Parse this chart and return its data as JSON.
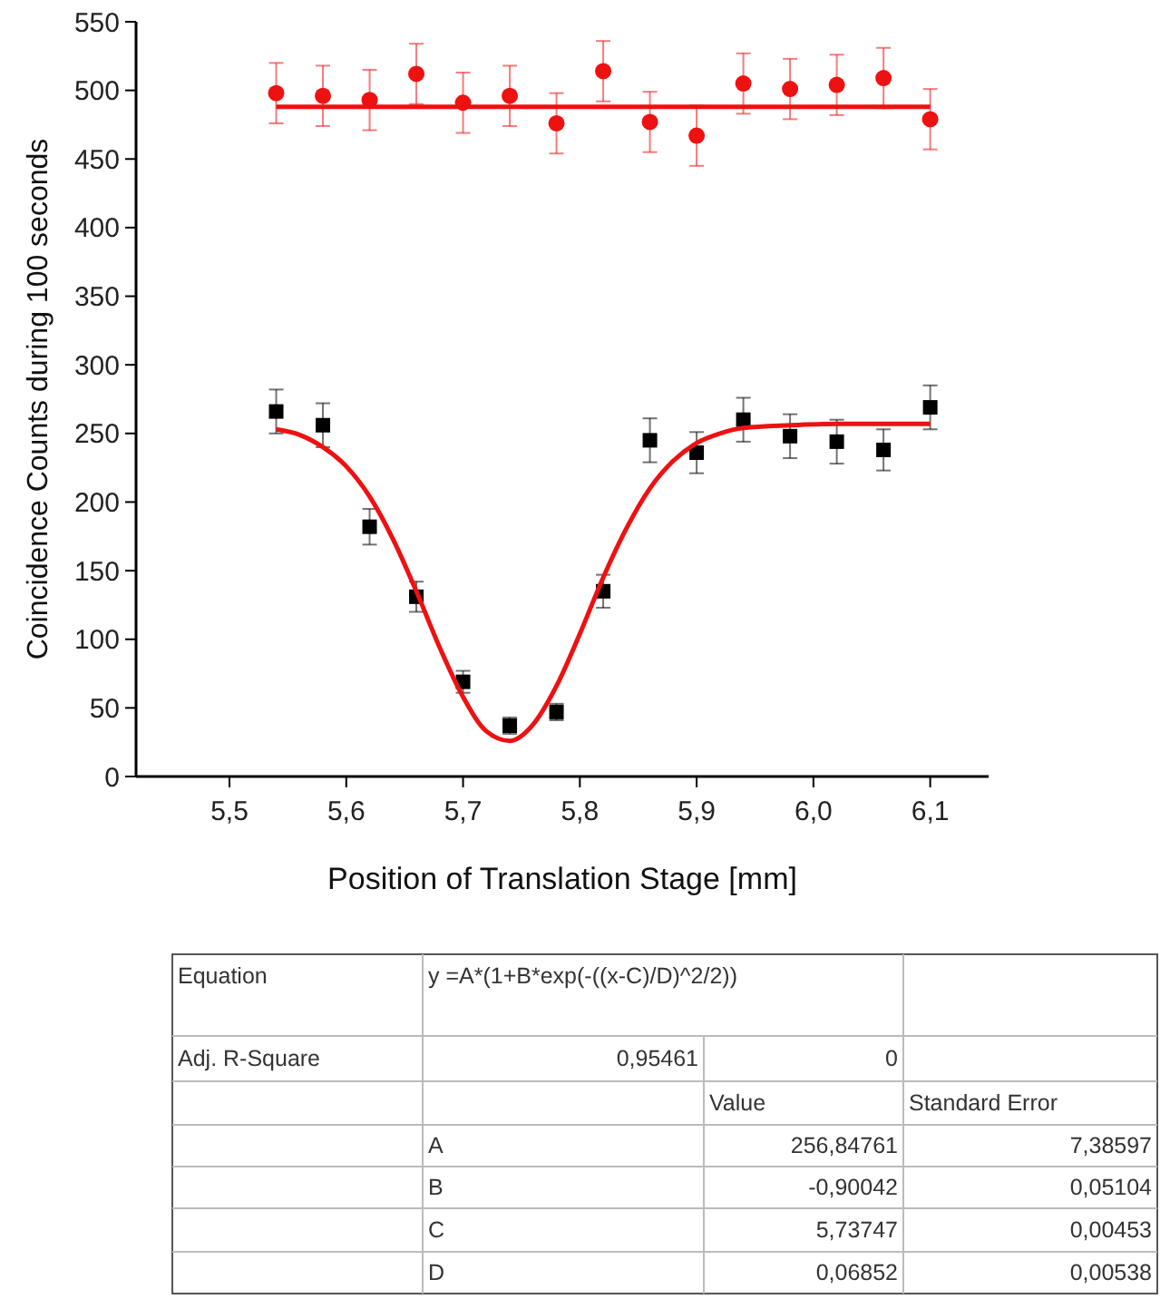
{
  "chart_data": [
    {
      "type": "scatter",
      "xlabel": "Position of Translation Stage [mm]",
      "ylabel": "Coincidence Counts during 100 seconds",
      "xlim": [
        5.42,
        6.15
      ],
      "ylim": [
        0,
        550
      ],
      "xticks": [
        {
          "value": 5.5,
          "label": "5,5"
        },
        {
          "value": 5.6,
          "label": "5,6"
        },
        {
          "value": 5.7,
          "label": "5,7"
        },
        {
          "value": 5.8,
          "label": "5,8"
        },
        {
          "value": 5.9,
          "label": "5,9"
        },
        {
          "value": 6.0,
          "label": "6,0"
        },
        {
          "value": 6.1,
          "label": "6,1"
        }
      ],
      "yticks": [
        0,
        50,
        100,
        150,
        200,
        250,
        300,
        350,
        400,
        450,
        500,
        550
      ],
      "grid": false,
      "series": [
        {
          "type": "scatter",
          "marker": "circle",
          "color": "#ee1111",
          "x": [
            5.54,
            5.58,
            5.62,
            5.66,
            5.7,
            5.74,
            5.78,
            5.82,
            5.86,
            5.9,
            5.94,
            5.98,
            6.02,
            6.06,
            6.1
          ],
          "values": [
            498,
            496,
            493,
            512,
            491,
            496,
            476,
            514,
            477,
            467,
            505,
            501,
            504,
            509,
            479
          ],
          "errors": [
            22,
            22,
            22,
            22,
            22,
            22,
            22,
            22,
            22,
            22,
            22,
            22,
            22,
            22,
            22
          ]
        },
        {
          "type": "line",
          "color": "#ee1111",
          "x": [
            5.54,
            6.1
          ],
          "values": [
            488,
            488
          ]
        },
        {
          "type": "scatter",
          "marker": "square",
          "color": "#000000",
          "x": [
            5.54,
            5.58,
            5.62,
            5.66,
            5.7,
            5.74,
            5.78,
            5.82,
            5.86,
            5.9,
            5.94,
            5.98,
            6.02,
            6.06,
            6.1
          ],
          "values": [
            266,
            256,
            182,
            131,
            69,
            37,
            47,
            135,
            245,
            236,
            260,
            248,
            244,
            238,
            269
          ],
          "errors": [
            16,
            16,
            13,
            11,
            8,
            6,
            6,
            12,
            16,
            15,
            16,
            16,
            16,
            15,
            16
          ]
        },
        {
          "type": "line",
          "color": "#ee1111",
          "x": [
            5.54,
            5.56,
            5.58,
            5.6,
            5.62,
            5.64,
            5.66,
            5.68,
            5.7,
            5.72,
            5.74,
            5.76,
            5.78,
            5.8,
            5.82,
            5.84,
            5.86,
            5.88,
            5.9,
            5.92,
            5.94,
            5.98,
            6.02,
            6.1
          ],
          "values": [
            253,
            249,
            240,
            226,
            204,
            173,
            135,
            94,
            58,
            33,
            26,
            38,
            66,
            104,
            145,
            181,
            210,
            230,
            243,
            250,
            254,
            256,
            257,
            257
          ]
        }
      ]
    },
    {
      "type": "other",
      "annotations": [
        "Equation",
        "y =A*(1+B*exp(-((x-C)/D)^2/2))",
        "Adj. R-Square",
        "0,95461",
        "0",
        "Value",
        "Standard Error",
        "A",
        "256,84761",
        "7,38597",
        "B",
        "-0,90042",
        "0,05104",
        "C",
        "5,73747",
        "0,00453",
        "D",
        "0,06852",
        "0,00538"
      ]
    }
  ]
}
